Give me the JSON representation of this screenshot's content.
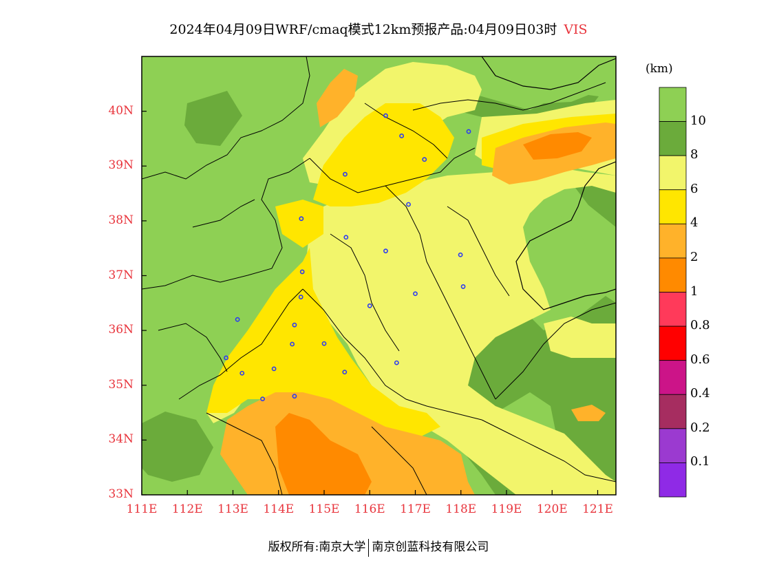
{
  "title": {
    "text": "2024年04月09日WRF/cmaq模式12km预报产品:04月09日03时",
    "variable": "VIS"
  },
  "units": "(km)",
  "footer": {
    "left": "版权所有:南京大学",
    "right": "南京创蓝科技有限公司"
  },
  "map": {
    "lon_range": [
      111,
      121.4
    ],
    "lat_range": [
      33,
      41
    ],
    "lat_ticks": [
      {
        "value": 40,
        "label": "40N"
      },
      {
        "value": 39,
        "label": "39N"
      },
      {
        "value": 38,
        "label": "38N"
      },
      {
        "value": 37,
        "label": "37N"
      },
      {
        "value": 36,
        "label": "36N"
      },
      {
        "value": 35,
        "label": "35N"
      },
      {
        "value": 34,
        "label": "34N"
      },
      {
        "value": 33,
        "label": "33N"
      }
    ],
    "lon_ticks": [
      {
        "value": 111,
        "label": "111E"
      },
      {
        "value": 112,
        "label": "112E"
      },
      {
        "value": 113,
        "label": "113E"
      },
      {
        "value": 114,
        "label": "114E"
      },
      {
        "value": 115,
        "label": "115E"
      },
      {
        "value": 116,
        "label": "116E"
      },
      {
        "value": 117,
        "label": "117E"
      },
      {
        "value": 118,
        "label": "118E"
      },
      {
        "value": 119,
        "label": "119E"
      },
      {
        "value": 120,
        "label": "120E"
      },
      {
        "value": 121,
        "label": "121E"
      }
    ],
    "stations": [
      [
        116.35,
        39.92
      ],
      [
        116.7,
        39.55
      ],
      [
        118.17,
        39.63
      ],
      [
        117.2,
        39.12
      ],
      [
        115.46,
        38.85
      ],
      [
        116.85,
        38.3
      ],
      [
        114.5,
        38.04
      ],
      [
        115.48,
        37.7
      ],
      [
        116.35,
        37.45
      ],
      [
        117.99,
        37.38
      ],
      [
        118.05,
        36.8
      ],
      [
        114.52,
        37.07
      ],
      [
        114.49,
        36.61
      ],
      [
        117.0,
        36.67
      ],
      [
        116.0,
        36.45
      ],
      [
        114.35,
        36.1
      ],
      [
        113.1,
        36.2
      ],
      [
        114.3,
        35.75
      ],
      [
        115.0,
        35.76
      ],
      [
        112.85,
        35.5
      ],
      [
        113.9,
        35.3
      ],
      [
        113.2,
        35.22
      ],
      [
        115.45,
        35.24
      ],
      [
        116.59,
        35.41
      ],
      [
        114.35,
        34.8
      ],
      [
        113.65,
        34.75
      ]
    ],
    "station_color": "#2d3cf0",
    "background_category": "10"
  },
  "colorbar": {
    "bins": [
      {
        "color": "#8ed054",
        "label": "10"
      },
      {
        "color": "#6bab3b",
        "label": "8"
      },
      {
        "color": "#f2f56b",
        "label": "6"
      },
      {
        "color": "#ffe600",
        "label": "4"
      },
      {
        "color": "#ffb22a",
        "label": "2"
      },
      {
        "color": "#ff8a00",
        "label": "1"
      },
      {
        "color": "#ff3a5a",
        "label": "0.8"
      },
      {
        "color": "#ff0000",
        "label": "0.6"
      },
      {
        "color": "#cc1488",
        "label": "0.4"
      },
      {
        "color": "#a62d60",
        "label": "0.2"
      },
      {
        "color": "#9b3ad0",
        "label": "0.1"
      },
      {
        "color": "#8f2ae6",
        "label": ""
      }
    ]
  }
}
